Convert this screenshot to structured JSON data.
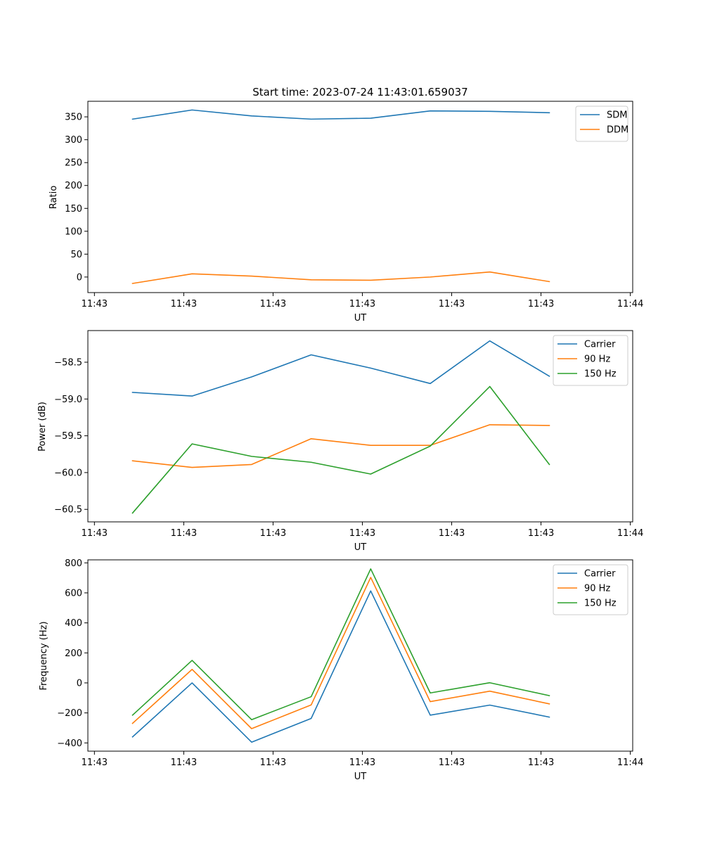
{
  "chart_data": [
    {
      "type": "line",
      "title": "Start time: 2023-07-24 11:43:01.659037",
      "xlabel": "UT",
      "ylabel": "Ratio",
      "x": [
        1,
        2,
        3,
        4,
        5,
        6,
        7,
        8
      ],
      "xlim": [
        0.25,
        9.4
      ],
      "ylim": [
        -34,
        384
      ],
      "x_ticks": [
        0.36,
        1.86,
        3.36,
        4.86,
        6.36,
        7.86,
        9.36
      ],
      "x_tick_labels": [
        "11:43",
        "11:43",
        "11:43",
        "11:43",
        "11:43",
        "11:43",
        "11:44"
      ],
      "y_ticks": [
        0,
        50,
        100,
        150,
        200,
        250,
        300,
        350
      ],
      "y_tick_labels": [
        "0",
        "50",
        "100",
        "150",
        "200",
        "250",
        "300",
        "350"
      ],
      "legend_position": "top-right",
      "series": [
        {
          "name": "SDM",
          "color": "#1f77b4",
          "values": [
            345,
            365,
            352,
            345,
            347,
            363,
            362,
            359
          ]
        },
        {
          "name": "DDM",
          "color": "#ff7f0e",
          "values": [
            -14,
            7,
            2,
            -6,
            -7,
            0,
            11,
            -10
          ]
        }
      ]
    },
    {
      "type": "line",
      "title": "",
      "xlabel": "UT",
      "ylabel": "Power (dB)",
      "x": [
        1,
        2,
        3,
        4,
        5,
        6,
        7,
        8
      ],
      "xlim": [
        0.25,
        9.4
      ],
      "ylim": [
        -60.67,
        -58.07
      ],
      "x_ticks": [
        0.36,
        1.86,
        3.36,
        4.86,
        6.36,
        7.86,
        9.36
      ],
      "x_tick_labels": [
        "11:43",
        "11:43",
        "11:43",
        "11:43",
        "11:43",
        "11:43",
        "11:44"
      ],
      "y_ticks": [
        -60.5,
        -60.0,
        -59.5,
        -59.0,
        -58.5
      ],
      "y_tick_labels": [
        "−60.5",
        "−60.0",
        "−59.5",
        "−59.0",
        "−58.5"
      ],
      "legend_position": "top-right",
      "series": [
        {
          "name": "Carrier",
          "color": "#1f77b4",
          "values": [
            -58.91,
            -58.96,
            -58.7,
            -58.4,
            -58.58,
            -58.79,
            -58.21,
            -58.69
          ]
        },
        {
          "name": "90 Hz",
          "color": "#ff7f0e",
          "values": [
            -59.84,
            -59.93,
            -59.89,
            -59.54,
            -59.63,
            -59.63,
            -59.35,
            -59.36
          ]
        },
        {
          "name": "150 Hz",
          "color": "#2ca02c",
          "values": [
            -60.55,
            -59.61,
            -59.78,
            -59.86,
            -60.02,
            -59.64,
            -58.83,
            -59.89
          ]
        }
      ]
    },
    {
      "type": "line",
      "title": "",
      "xlabel": "UT",
      "ylabel": "Frequency (Hz)",
      "x": [
        1,
        2,
        3,
        4,
        5,
        6,
        7,
        8
      ],
      "xlim": [
        0.25,
        9.4
      ],
      "ylim": [
        -455,
        820
      ],
      "x_ticks": [
        0.36,
        1.86,
        3.36,
        4.86,
        6.36,
        7.86,
        9.36
      ],
      "x_tick_labels": [
        "11:43",
        "11:43",
        "11:43",
        "11:43",
        "11:43",
        "11:43",
        "11:44"
      ],
      "y_ticks": [
        -400,
        -200,
        0,
        200,
        400,
        600,
        800
      ],
      "y_tick_labels": [
        "−400",
        "−200",
        "0",
        "200",
        "400",
        "600",
        "800"
      ],
      "legend_position": "top-right",
      "series": [
        {
          "name": "Carrier",
          "color": "#1f77b4",
          "values": [
            -360,
            0,
            -395,
            -237,
            613,
            -215,
            -148,
            -228
          ]
        },
        {
          "name": "90 Hz",
          "color": "#ff7f0e",
          "values": [
            -270,
            90,
            -305,
            -147,
            703,
            -125,
            -55,
            -140
          ]
        },
        {
          "name": "150 Hz",
          "color": "#2ca02c",
          "values": [
            -215,
            150,
            -245,
            -92,
            760,
            -67,
            1,
            -85
          ]
        }
      ]
    }
  ]
}
